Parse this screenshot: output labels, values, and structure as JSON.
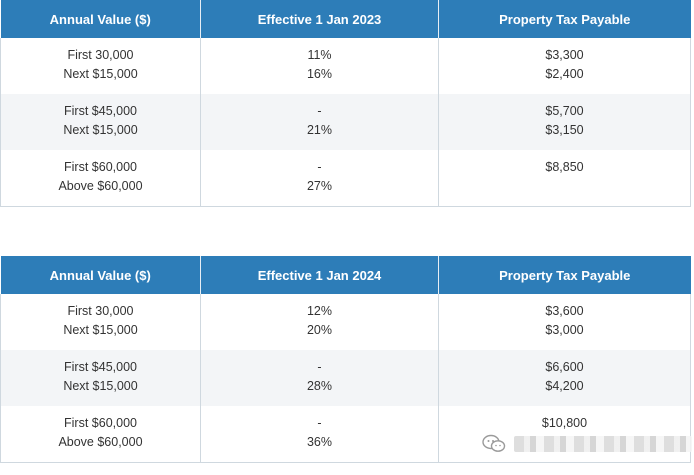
{
  "tables": [
    {
      "headers": [
        "Annual Value ($)",
        "Effective 1 Jan 2023",
        "Property Tax Payable"
      ],
      "rows": [
        {
          "annual_value": [
            "First 30,000",
            "Next $15,000"
          ],
          "rate": [
            "11%",
            "16%"
          ],
          "payable": [
            "$3,300",
            "$2,400"
          ]
        },
        {
          "annual_value": [
            "First $45,000",
            "Next $15,000"
          ],
          "rate": [
            "-",
            "21%"
          ],
          "payable": [
            "$5,700",
            "$3,150"
          ]
        },
        {
          "annual_value": [
            "First $60,000",
            "Above $60,000"
          ],
          "rate": [
            "-",
            "27%"
          ],
          "payable": [
            "$8,850",
            ""
          ]
        }
      ]
    },
    {
      "headers": [
        "Annual Value ($)",
        "Effective 1 Jan 2024",
        "Property Tax Payable"
      ],
      "rows": [
        {
          "annual_value": [
            "First 30,000",
            "Next $15,000"
          ],
          "rate": [
            "12%",
            "20%"
          ],
          "payable": [
            "$3,600",
            "$3,000"
          ]
        },
        {
          "annual_value": [
            "First $45,000",
            "Next $15,000"
          ],
          "rate": [
            "-",
            "28%"
          ],
          "payable": [
            "$6,600",
            "$4,200"
          ]
        },
        {
          "annual_value": [
            "First $60,000",
            "Above $60,000"
          ],
          "rate": [
            "-",
            "36%"
          ],
          "payable": [
            "$10,800",
            ""
          ]
        }
      ]
    }
  ],
  "watermark": {
    "icon": "wechat-icon"
  }
}
